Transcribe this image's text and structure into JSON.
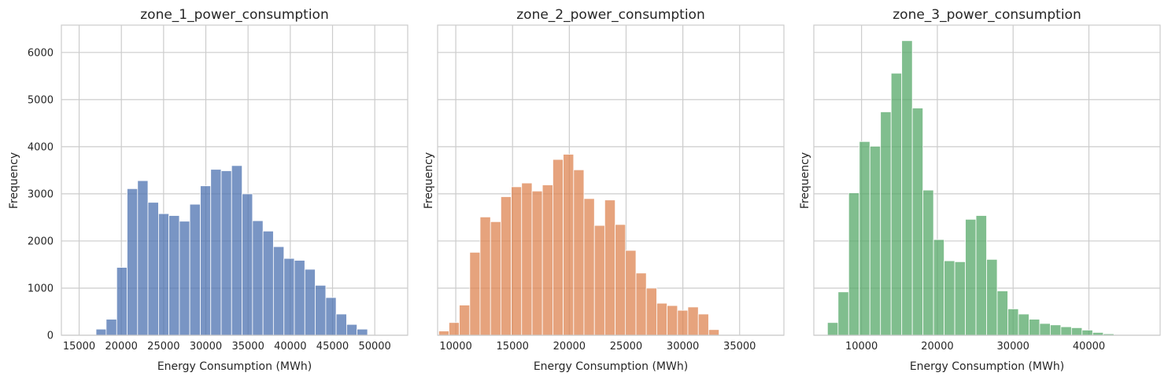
{
  "chart_data": [
    {
      "type": "bar",
      "title": "zone_1_power_consumption",
      "xlabel": "Energy Consumption (MWh)",
      "ylabel": "Frequency",
      "color": "#4c72b0",
      "xlim": [
        12900,
        53900
      ],
      "ylim": [
        0,
        6580
      ],
      "xticks": [
        15000,
        20000,
        25000,
        30000,
        35000,
        40000,
        45000,
        50000
      ],
      "xtick_labels": [
        "15000",
        "20000",
        "25000",
        "30000",
        "35000",
        "40000",
        "45000",
        "50000"
      ],
      "yticks": [
        0,
        1000,
        2000,
        3000,
        4000,
        5000,
        6000
      ],
      "ytick_labels": [
        "0",
        "1000",
        "2000",
        "3000",
        "4000",
        "5000",
        "6000"
      ],
      "grid": true,
      "bins": [
        {
          "x0": 17000,
          "x1": 18200,
          "value": 130
        },
        {
          "x0": 18200,
          "x1": 19450,
          "value": 340
        },
        {
          "x0": 19450,
          "x1": 20680,
          "value": 1440
        },
        {
          "x0": 20680,
          "x1": 21920,
          "value": 3110
        },
        {
          "x0": 21920,
          "x1": 23150,
          "value": 3280
        },
        {
          "x0": 23150,
          "x1": 24400,
          "value": 2820
        },
        {
          "x0": 24400,
          "x1": 25630,
          "value": 2580
        },
        {
          "x0": 25630,
          "x1": 26870,
          "value": 2540
        },
        {
          "x0": 26870,
          "x1": 28100,
          "value": 2420
        },
        {
          "x0": 28100,
          "x1": 29350,
          "value": 2780
        },
        {
          "x0": 29350,
          "x1": 30580,
          "value": 3170
        },
        {
          "x0": 30580,
          "x1": 31820,
          "value": 3520
        },
        {
          "x0": 31820,
          "x1": 33050,
          "value": 3490
        },
        {
          "x0": 33050,
          "x1": 34300,
          "value": 3600
        },
        {
          "x0": 34300,
          "x1": 35530,
          "value": 3000
        },
        {
          "x0": 35530,
          "x1": 36770,
          "value": 2430
        },
        {
          "x0": 36770,
          "x1": 38000,
          "value": 2210
        },
        {
          "x0": 38000,
          "x1": 39250,
          "value": 1880
        },
        {
          "x0": 39250,
          "x1": 40480,
          "value": 1630
        },
        {
          "x0": 40480,
          "x1": 41720,
          "value": 1590
        },
        {
          "x0": 41720,
          "x1": 42950,
          "value": 1400
        },
        {
          "x0": 42950,
          "x1": 44200,
          "value": 1060
        },
        {
          "x0": 44200,
          "x1": 45430,
          "value": 800
        },
        {
          "x0": 45430,
          "x1": 46670,
          "value": 450
        },
        {
          "x0": 46670,
          "x1": 47900,
          "value": 230
        },
        {
          "x0": 47900,
          "x1": 49150,
          "value": 130
        }
      ]
    },
    {
      "type": "bar",
      "title": "zone_2_power_consumption",
      "xlabel": "Energy Consumption (MWh)",
      "ylabel": "Frequency",
      "color": "#dd8452",
      "xlim": [
        8400,
        38900
      ],
      "ylim": [
        0,
        6580
      ],
      "xticks": [
        10000,
        15000,
        20000,
        25000,
        30000,
        35000
      ],
      "xtick_labels": [
        "10000",
        "15000",
        "20000",
        "25000",
        "30000",
        "35000"
      ],
      "yticks": [
        0,
        1000,
        2000,
        3000,
        4000,
        5000,
        6000
      ],
      "ytick_labels": [],
      "grid": true,
      "bins": [
        {
          "x0": 8500,
          "x1": 9400,
          "value": 90
        },
        {
          "x0": 9400,
          "x1": 10310,
          "value": 270
        },
        {
          "x0": 10310,
          "x1": 11230,
          "value": 640
        },
        {
          "x0": 11230,
          "x1": 12140,
          "value": 1760
        },
        {
          "x0": 12140,
          "x1": 13060,
          "value": 2510
        },
        {
          "x0": 13060,
          "x1": 13970,
          "value": 2410
        },
        {
          "x0": 13970,
          "x1": 14890,
          "value": 2940
        },
        {
          "x0": 14890,
          "x1": 15800,
          "value": 3150
        },
        {
          "x0": 15800,
          "x1": 16720,
          "value": 3230
        },
        {
          "x0": 16720,
          "x1": 17630,
          "value": 3060
        },
        {
          "x0": 17630,
          "x1": 18550,
          "value": 3190
        },
        {
          "x0": 18550,
          "x1": 19460,
          "value": 3730
        },
        {
          "x0": 19460,
          "x1": 20380,
          "value": 3840
        },
        {
          "x0": 20380,
          "x1": 21290,
          "value": 3510
        },
        {
          "x0": 21290,
          "x1": 22210,
          "value": 2900
        },
        {
          "x0": 22210,
          "x1": 23120,
          "value": 2330
        },
        {
          "x0": 23120,
          "x1": 24040,
          "value": 2870
        },
        {
          "x0": 24040,
          "x1": 24950,
          "value": 2350
        },
        {
          "x0": 24950,
          "x1": 25870,
          "value": 1800
        },
        {
          "x0": 25870,
          "x1": 26780,
          "value": 1320
        },
        {
          "x0": 26780,
          "x1": 27700,
          "value": 1000
        },
        {
          "x0": 27700,
          "x1": 28610,
          "value": 680
        },
        {
          "x0": 28610,
          "x1": 29530,
          "value": 630
        },
        {
          "x0": 29530,
          "x1": 30440,
          "value": 530
        },
        {
          "x0": 30440,
          "x1": 31360,
          "value": 600
        },
        {
          "x0": 31360,
          "x1": 32270,
          "value": 450
        },
        {
          "x0": 32270,
          "x1": 33190,
          "value": 120
        }
      ]
    },
    {
      "type": "bar",
      "title": "zone_3_power_consumption",
      "xlabel": "Energy Consumption (MWh)",
      "ylabel": "Frequency",
      "color": "#55a868",
      "xlim": [
        3700,
        49400
      ],
      "ylim": [
        0,
        6580
      ],
      "xticks": [
        10000,
        20000,
        30000,
        40000
      ],
      "xtick_labels": [
        "10000",
        "20000",
        "30000",
        "40000"
      ],
      "yticks": [
        0,
        1000,
        2000,
        3000,
        4000,
        5000,
        6000
      ],
      "ytick_labels": [],
      "grid": true,
      "bins": [
        {
          "x0": 5500,
          "x1": 6900,
          "value": 270
        },
        {
          "x0": 6900,
          "x1": 8300,
          "value": 920
        },
        {
          "x0": 8300,
          "x1": 9700,
          "value": 3020
        },
        {
          "x0": 9700,
          "x1": 11100,
          "value": 4110
        },
        {
          "x0": 11100,
          "x1": 12500,
          "value": 4010
        },
        {
          "x0": 12500,
          "x1": 13900,
          "value": 4740
        },
        {
          "x0": 13900,
          "x1": 15300,
          "value": 5560
        },
        {
          "x0": 15300,
          "x1": 16700,
          "value": 6250
        },
        {
          "x0": 16700,
          "x1": 18100,
          "value": 4820
        },
        {
          "x0": 18100,
          "x1": 19500,
          "value": 3080
        },
        {
          "x0": 19500,
          "x1": 20900,
          "value": 2030
        },
        {
          "x0": 20900,
          "x1": 22300,
          "value": 1580
        },
        {
          "x0": 22300,
          "x1": 23700,
          "value": 1560
        },
        {
          "x0": 23700,
          "x1": 25100,
          "value": 2460
        },
        {
          "x0": 25100,
          "x1": 26500,
          "value": 2540
        },
        {
          "x0": 26500,
          "x1": 27900,
          "value": 1610
        },
        {
          "x0": 27900,
          "x1": 29300,
          "value": 940
        },
        {
          "x0": 29300,
          "x1": 30700,
          "value": 560
        },
        {
          "x0": 30700,
          "x1": 32100,
          "value": 450
        },
        {
          "x0": 32100,
          "x1": 33500,
          "value": 340
        },
        {
          "x0": 33500,
          "x1": 34900,
          "value": 250
        },
        {
          "x0": 34900,
          "x1": 36300,
          "value": 220
        },
        {
          "x0": 36300,
          "x1": 37700,
          "value": 180
        },
        {
          "x0": 37700,
          "x1": 39100,
          "value": 160
        },
        {
          "x0": 39100,
          "x1": 40500,
          "value": 110
        },
        {
          "x0": 40500,
          "x1": 41900,
          "value": 60
        },
        {
          "x0": 41900,
          "x1": 43300,
          "value": 30
        }
      ]
    }
  ]
}
